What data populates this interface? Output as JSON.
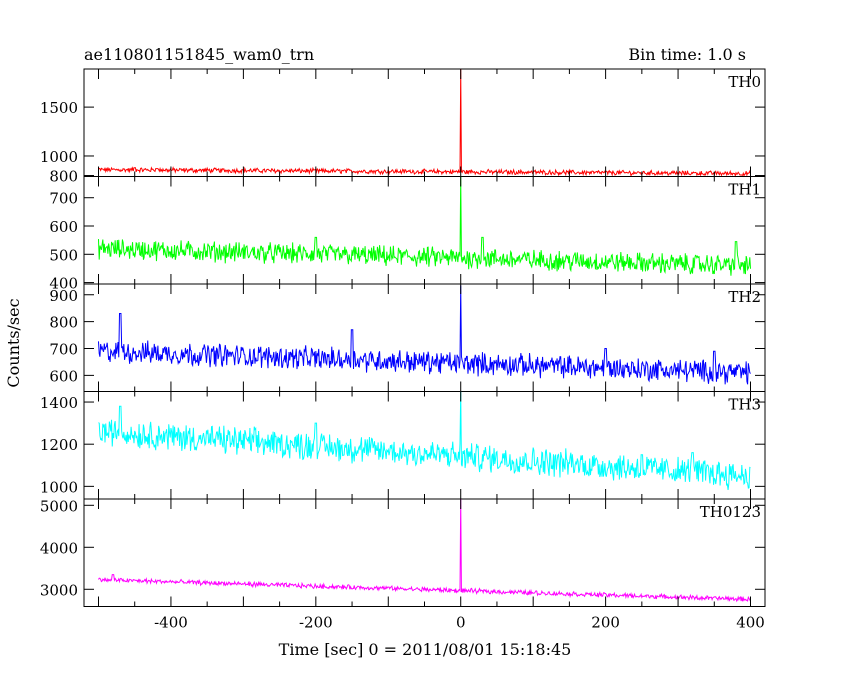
{
  "header": {
    "title": "ae110801151845_wam0_trn",
    "bin_time": "Bin time: 1.0 s"
  },
  "chart_data": {
    "type": "line",
    "title": "ae110801151845_wam0_trn",
    "xlabel": "Time [sec] 0 = 2011/08/01 15:18:45",
    "ylabel": "Counts/sec",
    "xlim": [
      -520,
      420
    ],
    "x_ticks": [
      -400,
      -200,
      0,
      200,
      400
    ],
    "grid": false,
    "bin_seconds": 1.0,
    "panels": [
      {
        "name": "TH0",
        "color": "#ff0000",
        "ylim": [
          790,
          1890
        ],
        "y_ticks": [
          800,
          1000,
          1500
        ],
        "trend": [
          [
            -500,
            860
          ],
          [
            400,
            820
          ]
        ],
        "noise": 20,
        "spike": {
          "x": 0,
          "peak": 1890
        },
        "bumps": [
          [
            -450,
            880
          ],
          [
            -420,
            870
          ]
        ]
      },
      {
        "name": "TH1",
        "color": "#00ff00",
        "ylim": [
          395,
          775
        ],
        "y_ticks": [
          400,
          500,
          600,
          700
        ],
        "trend": [
          [
            -500,
            520
          ],
          [
            400,
            460
          ]
        ],
        "noise": 30,
        "spike": {
          "x": 0,
          "peak": 775
        },
        "bumps": [
          [
            -200,
            560
          ],
          [
            30,
            560
          ],
          [
            380,
            545
          ]
        ]
      },
      {
        "name": "TH2",
        "color": "#0000ff",
        "ylim": [
          540,
          940
        ],
        "y_ticks": [
          600,
          700,
          800,
          900
        ],
        "trend": [
          [
            -500,
            690
          ],
          [
            400,
            610
          ]
        ],
        "noise": 35,
        "spike": {
          "x": 0,
          "peak": 935
        },
        "bumps": [
          [
            -470,
            830
          ],
          [
            -150,
            770
          ],
          [
            200,
            700
          ],
          [
            350,
            690
          ]
        ]
      },
      {
        "name": "TH3",
        "color": "#00ffff",
        "ylim": [
          940,
          1450
        ],
        "y_ticks": [
          1000,
          1200,
          1400
        ],
        "trend": [
          [
            -500,
            1260
          ],
          [
            400,
            1050
          ]
        ],
        "noise": 55,
        "spike": {
          "x": 0,
          "peak": 1450
        },
        "bumps": [
          [
            -470,
            1380
          ],
          [
            -200,
            1300
          ],
          [
            250,
            1150
          ],
          [
            320,
            1160
          ]
        ]
      },
      {
        "name": "TH0123",
        "color": "#ff00ff",
        "ylim": [
          2590,
          5150
        ],
        "y_ticks": [
          3000,
          4000,
          5000
        ],
        "trend": [
          [
            -500,
            3230
          ],
          [
            400,
            2760
          ]
        ],
        "noise": 45,
        "spike": {
          "x": 0,
          "peak": 5150
        },
        "bumps": [
          [
            -480,
            3350
          ],
          [
            -100,
            3050
          ]
        ]
      }
    ]
  }
}
